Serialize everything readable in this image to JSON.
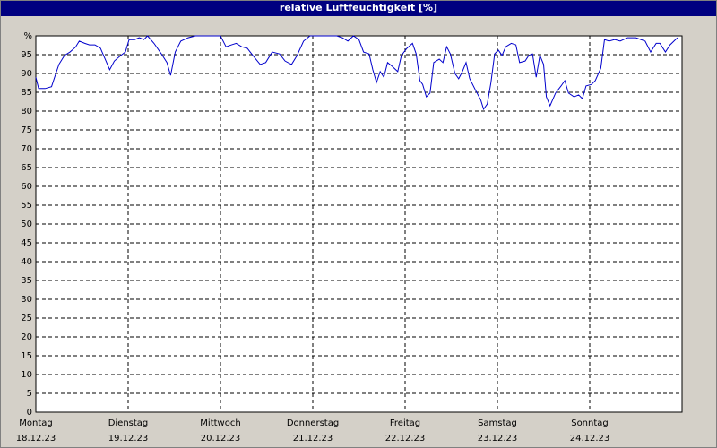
{
  "chart_data": {
    "type": "line",
    "title": "relative Luftfeuchtigkeit [%]",
    "color": "#0000cc",
    "grid": true,
    "xlim": [
      0,
      7
    ],
    "ylim": [
      0,
      100
    ],
    "yticks": [
      0,
      5,
      10,
      15,
      20,
      25,
      30,
      35,
      40,
      45,
      50,
      55,
      60,
      65,
      70,
      75,
      80,
      85,
      90,
      95,
      {
        "value": 100,
        "label": "%"
      }
    ],
    "xticks": [
      {
        "value": 0,
        "label": "Montag",
        "date": "18.12.23"
      },
      {
        "value": 1,
        "label": "Dienstag",
        "date": "19.12.23"
      },
      {
        "value": 2,
        "label": "Mittwoch",
        "date": "20.12.23"
      },
      {
        "value": 3,
        "label": "Donnerstag",
        "date": "21.12.23"
      },
      {
        "value": 4,
        "label": "Freitag",
        "date": "22.12.23"
      },
      {
        "value": 5,
        "label": "Samstag",
        "date": "23.12.23"
      },
      {
        "value": 6,
        "label": "Sonntag",
        "date": "24.12.23"
      }
    ],
    "x": [
      0,
      0.03,
      0.1,
      0.17,
      0.21,
      0.25,
      0.31,
      0.37,
      0.43,
      0.47,
      0.53,
      0.58,
      0.64,
      0.7,
      0.76,
      0.8,
      0.85,
      0.92,
      0.97,
      1.01,
      1.07,
      1.12,
      1.17,
      1.21,
      1.28,
      1.36,
      1.42,
      1.46,
      1.51,
      1.57,
      1.65,
      1.73,
      1.84,
      2,
      2.06,
      2.12,
      2.17,
      2.23,
      2.29,
      2.35,
      2.43,
      2.49,
      2.56,
      2.64,
      2.7,
      2.77,
      2.83,
      2.9,
      2.97,
      3.11,
      3.26,
      3.32,
      3.38,
      3.44,
      3.5,
      3.55,
      3.61,
      3.65,
      3.69,
      3.73,
      3.77,
      3.81,
      3.86,
      3.92,
      3.96,
      4.02,
      4.08,
      4.12,
      4.16,
      4.19,
      4.23,
      4.27,
      4.31,
      4.37,
      4.41,
      4.45,
      4.49,
      4.54,
      4.58,
      4.62,
      4.66,
      4.7,
      4.76,
      4.82,
      4.85,
      4.89,
      4.93,
      4.97,
      5.01,
      5.05,
      5.09,
      5.15,
      5.2,
      5.24,
      5.3,
      5.34,
      5.38,
      5.42,
      5.46,
      5.5,
      5.53,
      5.57,
      5.63,
      5.69,
      5.73,
      5.77,
      5.83,
      5.88,
      5.92,
      5.96,
      6.02,
      6.06,
      6.12,
      6.16,
      6.21,
      6.27,
      6.33,
      6.41,
      6.5,
      6.6,
      6.66,
      6.72,
      6.76,
      6.82,
      6.87,
      6.95
    ],
    "values": [
      89,
      86,
      86,
      86.5,
      89.5,
      92.4,
      94.8,
      95.7,
      97,
      98.6,
      98,
      97.6,
      97.6,
      96.7,
      93.3,
      91,
      93.3,
      94.8,
      95.7,
      99,
      99,
      99.5,
      99,
      100,
      98,
      95.2,
      92.9,
      89.5,
      95.7,
      98.6,
      99.5,
      100,
      100,
      100,
      97.1,
      97.6,
      98,
      97.1,
      96.7,
      94.8,
      92.4,
      92.9,
      95.7,
      95.2,
      93.3,
      92.4,
      94.8,
      98.6,
      100,
      100,
      100,
      99.5,
      98.6,
      100,
      99,
      95.7,
      95.2,
      91,
      87.6,
      90.5,
      89,
      92.9,
      91.9,
      90.5,
      94.8,
      96.7,
      98,
      95.2,
      88.1,
      87.1,
      83.8,
      84.8,
      92.9,
      93.8,
      92.9,
      97.1,
      95.2,
      90,
      88.6,
      90.5,
      92.9,
      88.6,
      85.7,
      82.9,
      80.5,
      81.9,
      87.6,
      95.2,
      96.2,
      94.8,
      97.1,
      98,
      97.6,
      92.9,
      93.3,
      94.8,
      95.2,
      89,
      94.8,
      92.4,
      83.8,
      81.4,
      84.8,
      86.7,
      88.1,
      84.8,
      83.8,
      84.3,
      83.3,
      86.7,
      87.1,
      88.1,
      91.4,
      99,
      98.6,
      99,
      98.6,
      99.5,
      99.5,
      98.6,
      95.7,
      98,
      98,
      95.7,
      97.6,
      99.5
    ]
  }
}
